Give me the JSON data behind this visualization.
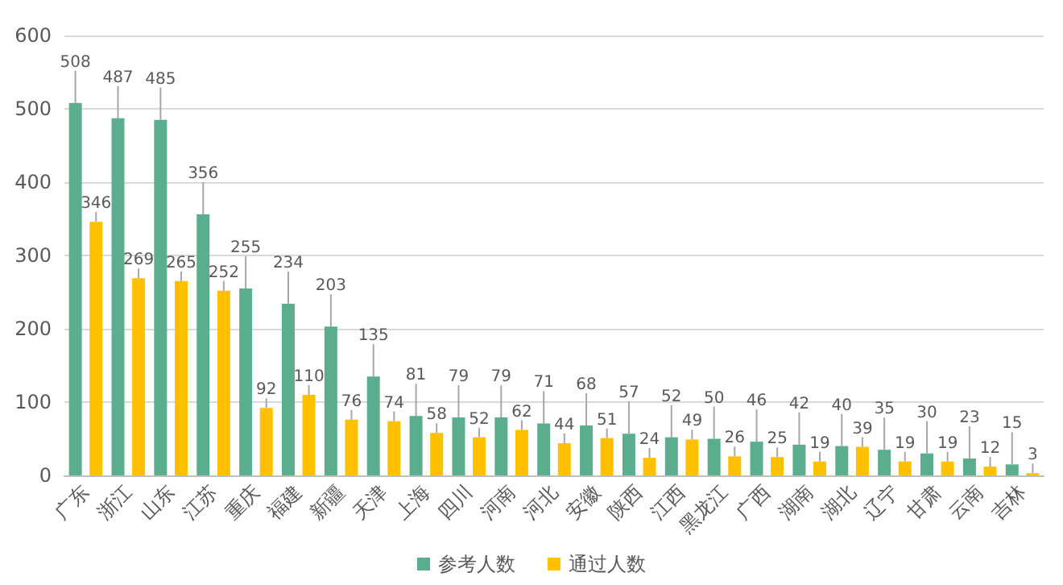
{
  "chart_data": {
    "type": "bar",
    "categories": [
      "广东",
      "浙江",
      "山东",
      "江苏",
      "重庆",
      "福建",
      "新疆",
      "天津",
      "上海",
      "四川",
      "河南",
      "河北",
      "安徽",
      "陕西",
      "江西",
      "黑龙江",
      "广西",
      "湖南",
      "湖北",
      "辽宁",
      "甘肃",
      "云南",
      "吉林"
    ],
    "series": [
      {
        "name": "参考人数",
        "color": "#5aae8e",
        "values": [
          508,
          487,
          485,
          356,
          255,
          234,
          203,
          135,
          81,
          79,
          79,
          71,
          68,
          57,
          52,
          50,
          46,
          42,
          40,
          35,
          30,
          23,
          15
        ]
      },
      {
        "name": "通过人数",
        "color": "#ffc000",
        "values": [
          346,
          269,
          265,
          252,
          92,
          110,
          76,
          74,
          58,
          52,
          62,
          44,
          51,
          24,
          49,
          26,
          25,
          19,
          39,
          19,
          19,
          12,
          3
        ]
      }
    ],
    "ylim": [
      0,
      600
    ],
    "yticks": [
      0,
      100,
      200,
      300,
      400,
      500,
      600
    ],
    "grid": "y",
    "legend": "bottom",
    "data_labels": true
  }
}
